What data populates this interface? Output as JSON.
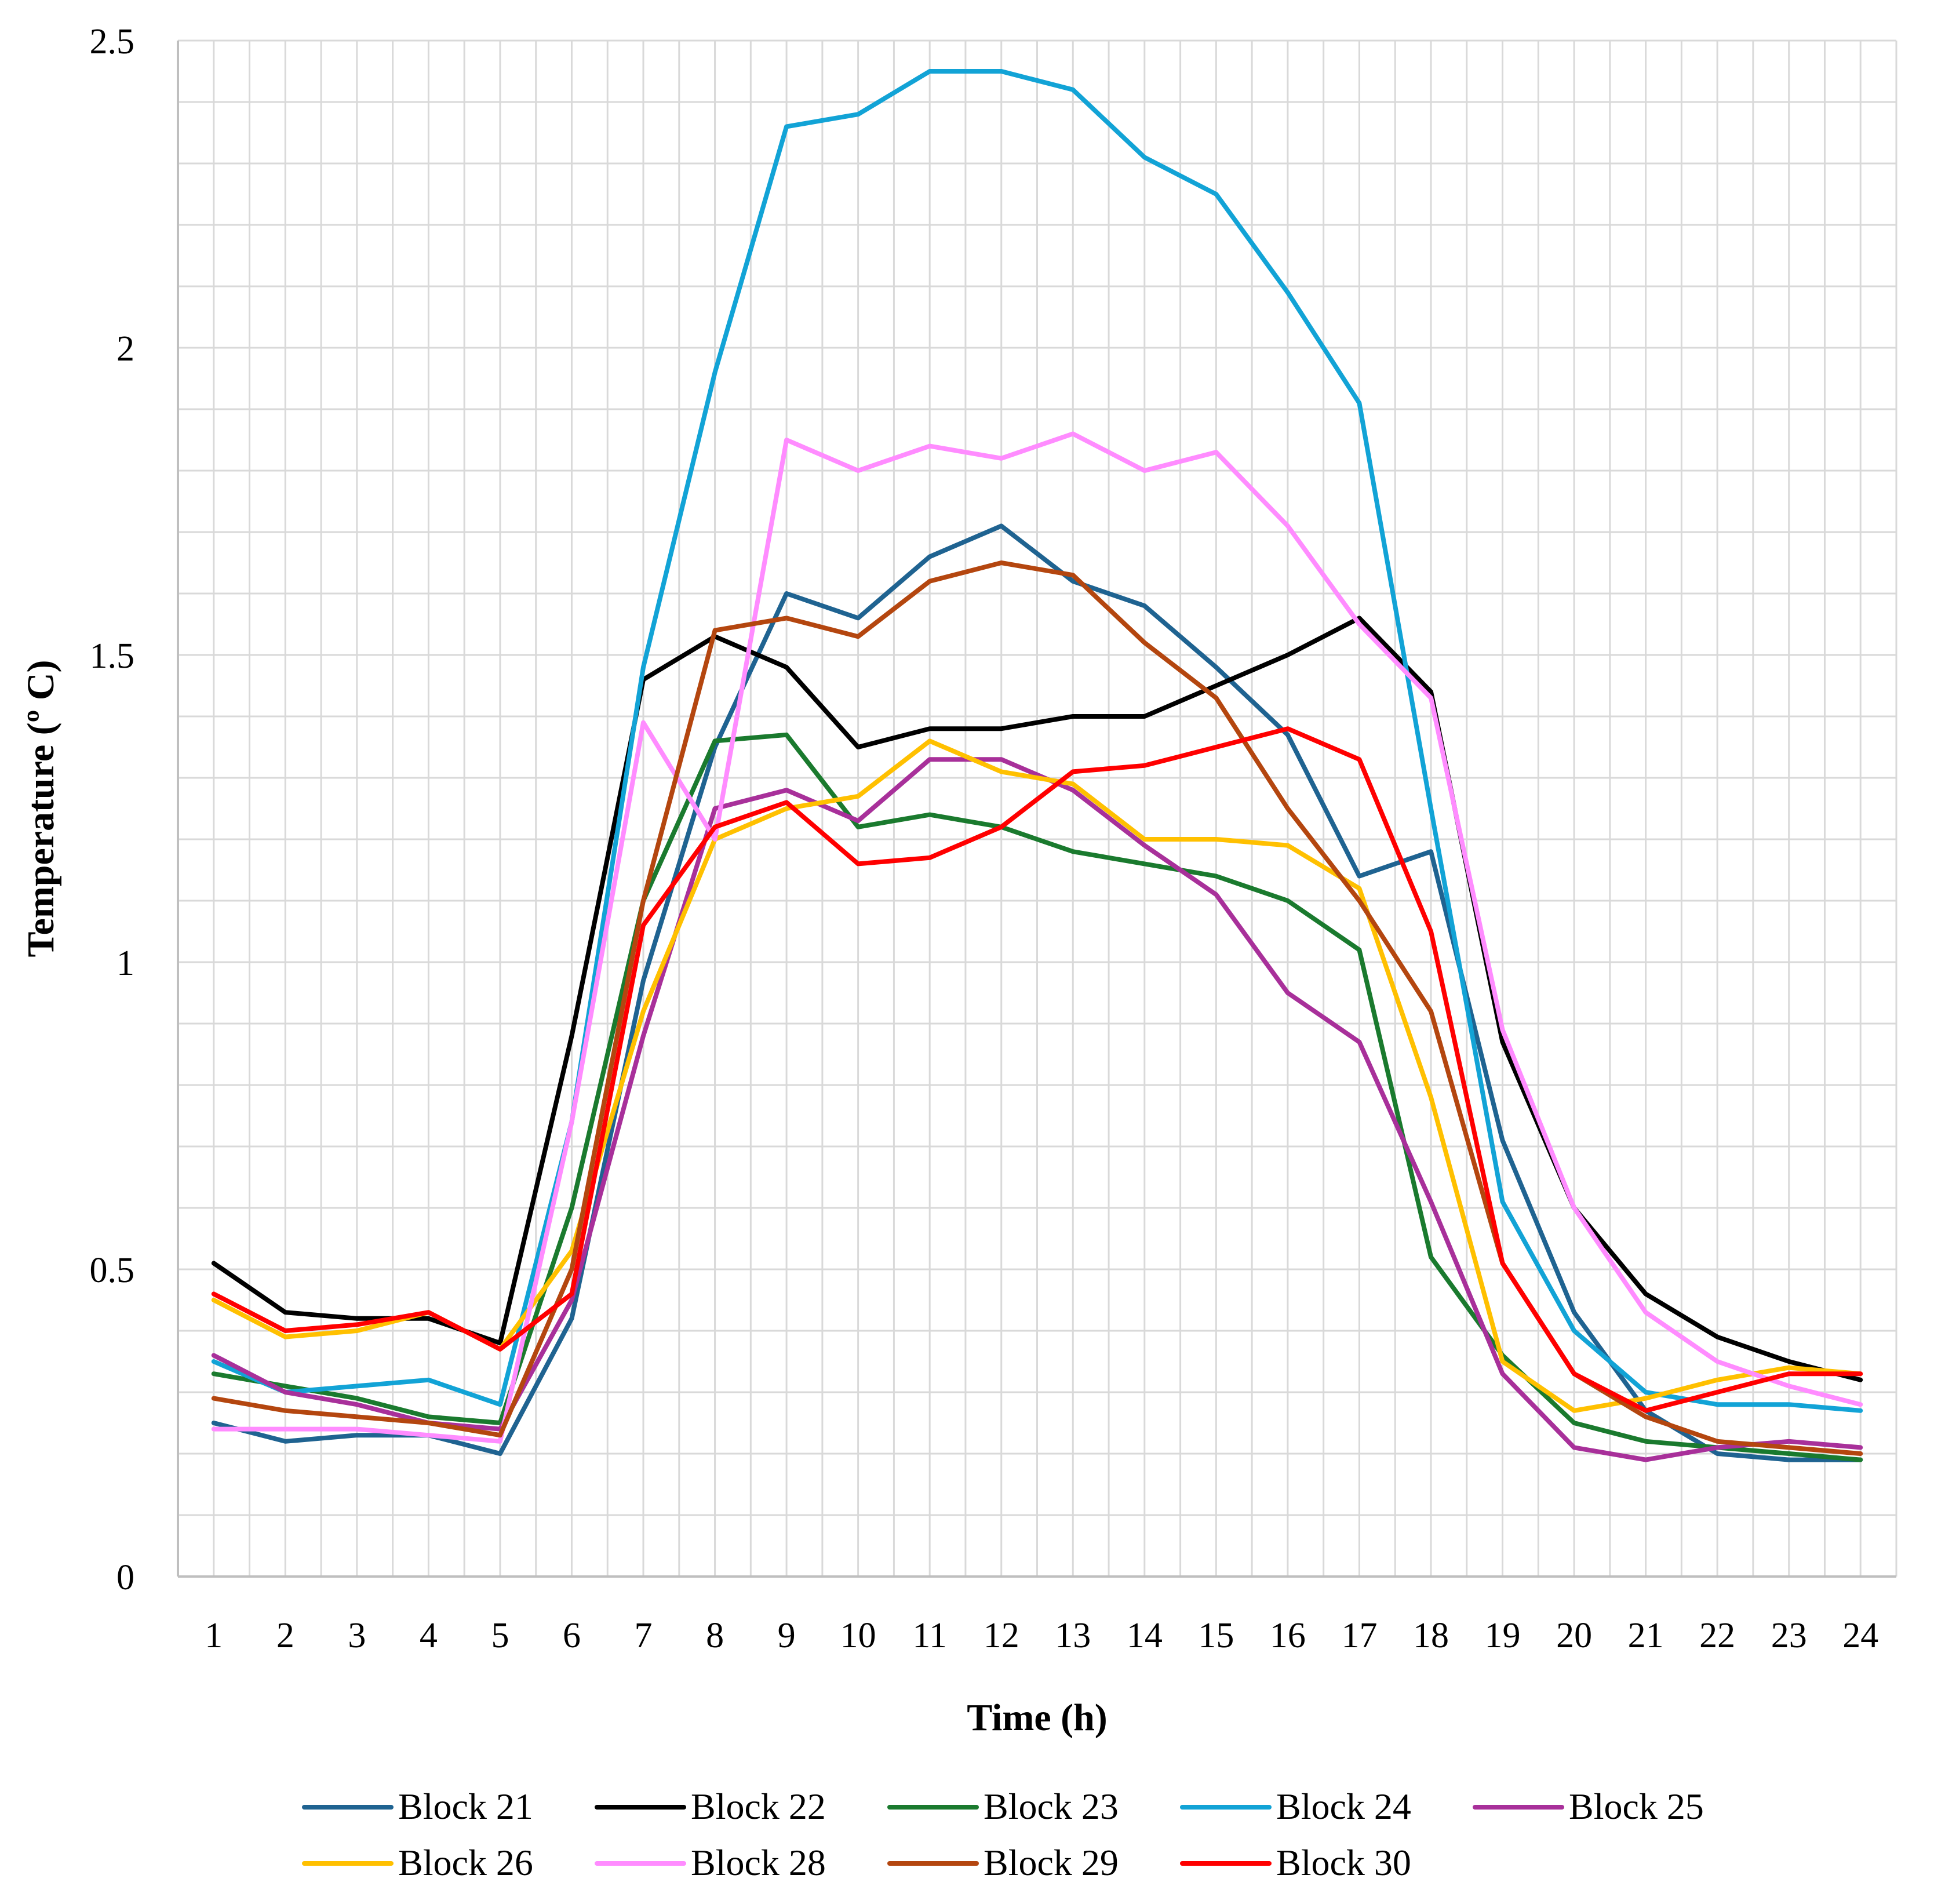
{
  "chart_data": {
    "type": "line",
    "title": "",
    "xlabel": "Time (h)",
    "ylabel": "Temperature (º C)",
    "x": [
      1,
      2,
      3,
      4,
      5,
      6,
      7,
      8,
      9,
      10,
      11,
      12,
      13,
      14,
      15,
      16,
      17,
      18,
      19,
      20,
      21,
      22,
      23,
      24
    ],
    "ylim": [
      0,
      2.5
    ],
    "yticks": [
      0,
      0.5,
      1,
      1.5,
      2,
      2.5
    ],
    "ytick_labels": [
      "0",
      "0.5",
      "1",
      "1.5",
      "2",
      "2.5"
    ],
    "grid": true,
    "legend_position": "bottom",
    "series": [
      {
        "name": "Block 21",
        "color": "#1f6391",
        "values": [
          0.25,
          0.22,
          0.23,
          0.23,
          0.2,
          0.42,
          0.97,
          1.35,
          1.6,
          1.56,
          1.66,
          1.71,
          1.62,
          1.58,
          1.48,
          1.37,
          1.14,
          1.18,
          0.71,
          0.43,
          0.27,
          0.2,
          0.19,
          0.19
        ]
      },
      {
        "name": "Block 22",
        "color": "#000000",
        "values": [
          0.51,
          0.43,
          0.42,
          0.42,
          0.38,
          0.88,
          1.46,
          1.53,
          1.48,
          1.35,
          1.38,
          1.38,
          1.4,
          1.4,
          1.45,
          1.5,
          1.56,
          1.44,
          0.87,
          0.6,
          0.46,
          0.39,
          0.35,
          0.32
        ]
      },
      {
        "name": "Block 23",
        "color": "#1a7a2e",
        "values": [
          0.33,
          0.31,
          0.29,
          0.26,
          0.25,
          0.6,
          1.1,
          1.36,
          1.37,
          1.22,
          1.24,
          1.22,
          1.18,
          1.16,
          1.14,
          1.1,
          1.02,
          0.52,
          0.36,
          0.25,
          0.22,
          0.21,
          0.2,
          0.19
        ]
      },
      {
        "name": "Block 24",
        "color": "#12a3d6",
        "values": [
          0.35,
          0.3,
          0.31,
          0.32,
          0.28,
          0.74,
          1.48,
          1.96,
          2.36,
          2.38,
          2.45,
          2.45,
          2.42,
          2.31,
          2.25,
          2.09,
          1.91,
          1.25,
          0.61,
          0.4,
          0.3,
          0.28,
          0.28,
          0.27
        ]
      },
      {
        "name": "Block 25",
        "color": "#a8309a",
        "values": [
          0.36,
          0.3,
          0.28,
          0.25,
          0.24,
          0.45,
          0.88,
          1.25,
          1.28,
          1.23,
          1.33,
          1.33,
          1.28,
          1.19,
          1.11,
          0.95,
          0.87,
          0.61,
          0.33,
          0.21,
          0.19,
          0.21,
          0.22,
          0.21
        ]
      },
      {
        "name": "Block 26",
        "color": "#ffc000",
        "values": [
          0.45,
          0.39,
          0.4,
          0.43,
          0.37,
          0.53,
          0.92,
          1.2,
          1.25,
          1.27,
          1.36,
          1.31,
          1.29,
          1.2,
          1.2,
          1.19,
          1.12,
          0.78,
          0.35,
          0.27,
          0.29,
          0.32,
          0.34,
          0.33
        ]
      },
      {
        "name": "Block 28",
        "color": "#ff8cff",
        "values": [
          0.24,
          0.24,
          0.24,
          0.23,
          0.22,
          0.74,
          1.39,
          1.2,
          1.85,
          1.8,
          1.84,
          1.82,
          1.86,
          1.8,
          1.83,
          1.71,
          1.55,
          1.43,
          0.89,
          0.6,
          0.43,
          0.35,
          0.31,
          0.28
        ]
      },
      {
        "name": "Block 29",
        "color": "#b4460f",
        "values": [
          0.29,
          0.27,
          0.26,
          0.25,
          0.23,
          0.5,
          1.1,
          1.54,
          1.56,
          1.53,
          1.62,
          1.65,
          1.63,
          1.52,
          1.43,
          1.25,
          1.1,
          0.92,
          0.51,
          0.33,
          0.26,
          0.22,
          0.21,
          0.2
        ]
      },
      {
        "name": "Block 30",
        "color": "#ff0000",
        "values": [
          0.46,
          0.4,
          0.41,
          0.43,
          0.37,
          0.46,
          1.06,
          1.22,
          1.26,
          1.16,
          1.17,
          1.22,
          1.31,
          1.32,
          1.35,
          1.38,
          1.33,
          1.05,
          0.51,
          0.33,
          0.27,
          0.3,
          0.33,
          0.33
        ]
      }
    ]
  }
}
